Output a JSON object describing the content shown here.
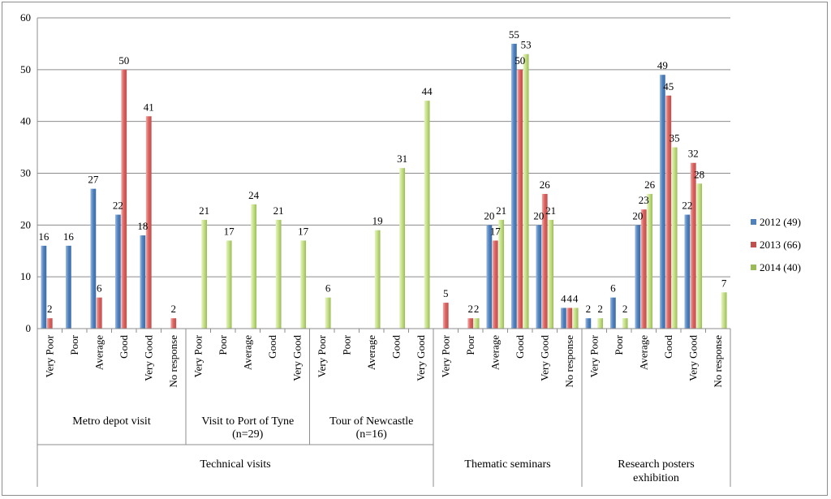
{
  "chart_data": {
    "type": "bar",
    "title": "",
    "xlabel": "",
    "ylabel": "",
    "ylim": [
      0,
      60
    ],
    "yticks": [
      0,
      10,
      20,
      30,
      40,
      50,
      60
    ],
    "grid": true,
    "legend_position": "right",
    "colors": {
      "2012 (49)": "#4f81bd",
      "2013 (66)": "#c0504d",
      "2014 (40)": "#9bbb59"
    },
    "series_names": [
      "2012 (49)",
      "2013 (66)",
      "2014 (40)"
    ],
    "top_groups": [
      {
        "label": "Technical visits",
        "span": [
          0,
          3
        ]
      },
      {
        "label": "Thematic seminars",
        "span": [
          3,
          4
        ]
      },
      {
        "label": "Research posters exhibition",
        "span": [
          4,
          5
        ]
      }
    ],
    "groups": [
      {
        "label": "Metro depot visit",
        "categories": [
          "Very Poor",
          "Poor",
          "Average",
          "Good",
          "Very Good",
          "No response"
        ],
        "series": [
          {
            "name": "2012 (49)",
            "values": [
              16,
              16,
              27,
              22,
              18,
              null
            ]
          },
          {
            "name": "2013 (66)",
            "values": [
              2,
              null,
              6,
              50,
              41,
              2
            ]
          },
          {
            "name": "2014 (40)",
            "values": [
              null,
              null,
              null,
              null,
              null,
              null
            ]
          }
        ]
      },
      {
        "label": "Visit to Port of Tyne (n=29)",
        "categories": [
          "Very Poor",
          "Poor",
          "Average",
          "Good",
          "Very Good"
        ],
        "series": [
          {
            "name": "2012 (49)",
            "values": [
              null,
              null,
              null,
              null,
              null
            ]
          },
          {
            "name": "2013 (66)",
            "values": [
              null,
              null,
              null,
              null,
              null
            ]
          },
          {
            "name": "2014 (40)",
            "values": [
              21,
              17,
              24,
              21,
              17
            ]
          }
        ]
      },
      {
        "label": "Tour of Newcastle (n=16)",
        "categories": [
          "Very Poor",
          "Poor",
          "Average",
          "Good",
          "Very Good"
        ],
        "series": [
          {
            "name": "2012 (49)",
            "values": [
              null,
              null,
              null,
              null,
              null
            ]
          },
          {
            "name": "2013 (66)",
            "values": [
              null,
              null,
              null,
              null,
              null
            ]
          },
          {
            "name": "2014 (40)",
            "values": [
              6,
              null,
              19,
              31,
              44
            ]
          }
        ]
      },
      {
        "label": "Thematic seminars",
        "categories": [
          "Very Poor",
          "Poor",
          "Average",
          "Good",
          "Very Good",
          "No response"
        ],
        "series": [
          {
            "name": "2012 (49)",
            "values": [
              null,
              null,
              20,
              55,
              20,
              4
            ]
          },
          {
            "name": "2013 (66)",
            "values": [
              5,
              2,
              17,
              50,
              26,
              4
            ]
          },
          {
            "name": "2014 (40)",
            "values": [
              null,
              2,
              21,
              53,
              21,
              4
            ]
          }
        ]
      },
      {
        "label": "Research posters exhibition",
        "categories": [
          "Very Poor",
          "Poor",
          "Average",
          "Good",
          "Very Good",
          "No response"
        ],
        "series": [
          {
            "name": "2012 (49)",
            "values": [
              2,
              6,
              20,
              49,
              22,
              null
            ]
          },
          {
            "name": "2013 (66)",
            "values": [
              null,
              null,
              23,
              45,
              32,
              null
            ]
          },
          {
            "name": "2014 (40)",
            "values": [
              2,
              2,
              26,
              35,
              28,
              7
            ]
          }
        ]
      }
    ]
  }
}
